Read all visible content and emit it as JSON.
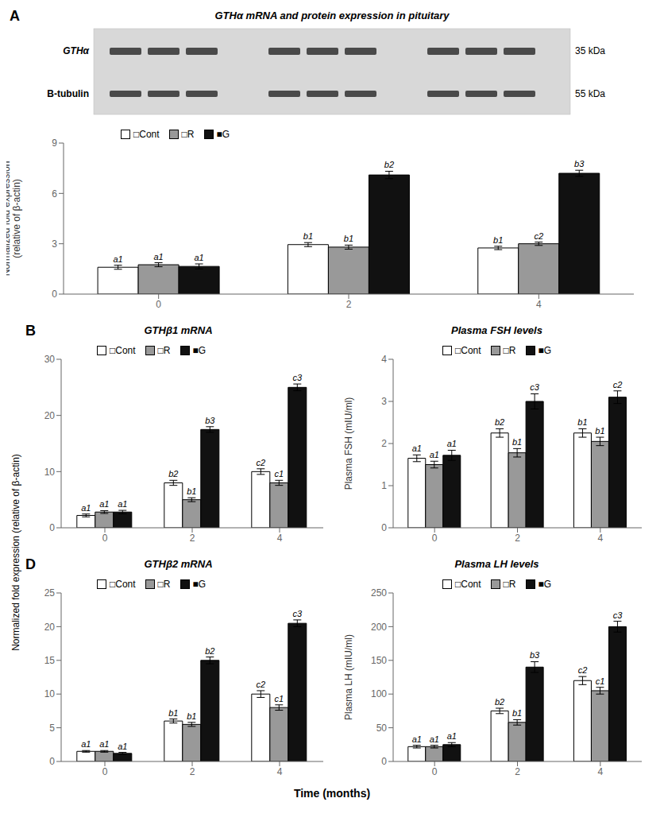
{
  "xlabel": "Time (months)",
  "ylabel": "Normalized fold expression (relative of β-actin)",
  "chart_data": [
    {
      "type": "bar",
      "title": "GTHα mRNA and protein expression in pituitary",
      "annotations": [
        "A",
        "GTHα",
        "B-tubulin",
        "35 kDa",
        "55 kDa"
      ],
      "ylabel": "Normalized fold expression\n(relative of β-actin)",
      "categories": [
        "0",
        "2",
        "4"
      ],
      "ylim": [
        0,
        9
      ],
      "yticks": [
        0,
        3,
        6,
        9
      ],
      "grid": false,
      "legend": "upper left",
      "series": [
        {
          "name": "□Cont",
          "color": "#ffffff",
          "values": [
            1.6,
            2.95,
            2.75
          ],
          "errors": [
            0.12,
            0.12,
            0.1
          ],
          "annotations": [
            "a1",
            "b1",
            "b1"
          ]
        },
        {
          "name": "□R",
          "color": "#999999",
          "values": [
            1.75,
            2.8,
            3.0
          ],
          "errors": [
            0.12,
            0.12,
            0.1
          ],
          "annotations": [
            "a1",
            "b1",
            "c2"
          ]
        },
        {
          "name": "■G",
          "color": "#111111",
          "values": [
            1.65,
            7.1,
            7.2
          ],
          "errors": [
            0.15,
            0.22,
            0.18
          ],
          "annotations": [
            "a1",
            "b2",
            "b3"
          ]
        }
      ]
    },
    {
      "type": "bar",
      "title": "GTHβ1 mRNA",
      "annotations": [
        "B"
      ],
      "categories": [
        "0",
        "2",
        "4"
      ],
      "ylim": [
        0,
        30
      ],
      "yticks": [
        0,
        10,
        20,
        30
      ],
      "grid": false,
      "legend": "upper left",
      "series": [
        {
          "name": "□Cont",
          "color": "#ffffff",
          "values": [
            2.2,
            8.0,
            10.0
          ],
          "errors": [
            0.25,
            0.45,
            0.5
          ],
          "annotations": [
            "a1",
            "b2",
            "c2"
          ]
        },
        {
          "name": "□R",
          "color": "#999999",
          "values": [
            2.8,
            5.0,
            8.0
          ],
          "errors": [
            0.25,
            0.35,
            0.45
          ],
          "annotations": [
            "a1",
            "b1",
            "c1"
          ]
        },
        {
          "name": "■G",
          "color": "#111111",
          "values": [
            2.8,
            17.5,
            25.0
          ],
          "errors": [
            0.3,
            0.5,
            0.6
          ],
          "annotations": [
            "a1",
            "b3",
            "c3"
          ]
        }
      ]
    },
    {
      "type": "bar",
      "title": "Plasma FSH levels",
      "ylabel": "Plasma FSH (mIU/ml)",
      "categories": [
        "0",
        "2",
        "4"
      ],
      "ylim": [
        0,
        4
      ],
      "yticks": [
        0,
        1,
        2,
        3,
        4
      ],
      "grid": false,
      "legend": "upper left",
      "series": [
        {
          "name": "□Cont",
          "color": "#ffffff",
          "values": [
            1.65,
            2.25,
            2.25
          ],
          "errors": [
            0.08,
            0.1,
            0.1
          ],
          "annotations": [
            "a1",
            "b2",
            "b1"
          ]
        },
        {
          "name": "□R",
          "color": "#999999",
          "values": [
            1.5,
            1.78,
            2.05
          ],
          "errors": [
            0.08,
            0.1,
            0.1
          ],
          "annotations": [
            "a1",
            "b1",
            "b1"
          ]
        },
        {
          "name": "■G",
          "color": "#111111",
          "values": [
            1.72,
            3.0,
            3.1
          ],
          "errors": [
            0.12,
            0.18,
            0.15
          ],
          "annotations": [
            "a1",
            "c3",
            "c2"
          ]
        }
      ]
    },
    {
      "type": "bar",
      "title": "GTHβ2 mRNA",
      "annotations": [
        "D"
      ],
      "categories": [
        "0",
        "2",
        "4"
      ],
      "ylim": [
        0,
        25
      ],
      "yticks": [
        0,
        5,
        10,
        15,
        20,
        25
      ],
      "grid": false,
      "legend": "upper left",
      "series": [
        {
          "name": "□Cont",
          "color": "#ffffff",
          "values": [
            1.5,
            6.0,
            10.0
          ],
          "errors": [
            0.12,
            0.3,
            0.5
          ],
          "annotations": [
            "a1",
            "b1",
            "c2"
          ]
        },
        {
          "name": "□R",
          "color": "#999999",
          "values": [
            1.5,
            5.5,
            8.0
          ],
          "errors": [
            0.12,
            0.3,
            0.4
          ],
          "annotations": [
            "a1",
            "b1",
            "c1"
          ]
        },
        {
          "name": "■G",
          "color": "#111111",
          "values": [
            1.2,
            15.0,
            20.5
          ],
          "errors": [
            0.15,
            0.5,
            0.5
          ],
          "annotations": [
            "a1",
            "b2",
            "c3"
          ]
        }
      ]
    },
    {
      "type": "bar",
      "title": "Plasma LH levels",
      "ylabel": "Plasma LH (mIU/ml)",
      "categories": [
        "0",
        "2",
        "4"
      ],
      "ylim": [
        0,
        250
      ],
      "yticks": [
        0,
        50,
        100,
        150,
        200,
        250
      ],
      "grid": false,
      "legend": "upper left",
      "series": [
        {
          "name": "□Cont",
          "color": "#ffffff",
          "values": [
            22,
            75,
            120
          ],
          "errors": [
            2,
            4,
            6
          ],
          "annotations": [
            "a1",
            "b2",
            "c2"
          ]
        },
        {
          "name": "□R",
          "color": "#999999",
          "values": [
            22,
            58,
            105
          ],
          "errors": [
            2,
            4,
            5
          ],
          "annotations": [
            "a1",
            "b1",
            "c1"
          ]
        },
        {
          "name": "■G",
          "color": "#111111",
          "values": [
            25,
            140,
            200
          ],
          "errors": [
            3,
            8,
            8
          ],
          "annotations": [
            "a1",
            "b3",
            "c3"
          ]
        }
      ]
    }
  ]
}
